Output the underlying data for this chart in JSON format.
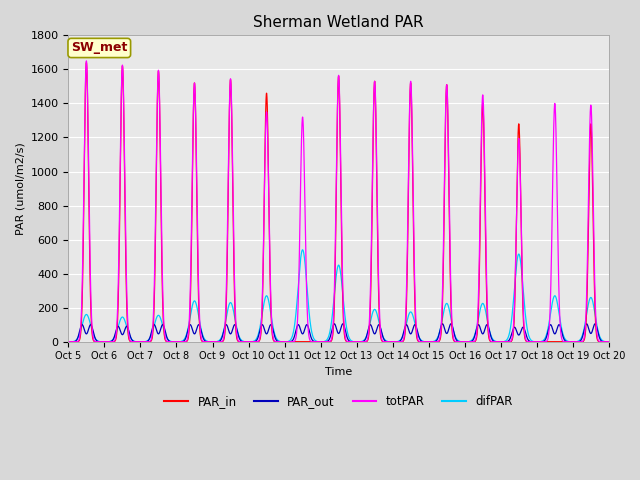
{
  "title": "Sherman Wetland PAR",
  "xlabel": "Time",
  "ylabel": "PAR (umol/m2/s)",
  "ylim": [
    0,
    1800
  ],
  "fig_bg_color": "#d8d8d8",
  "plot_bg": "#e8e8e8",
  "annotation_text": "SW_met",
  "annotation_bg": "#ffffcc",
  "annotation_border": "#999900",
  "annotation_text_color": "#8b0000",
  "n_days": 15,
  "points_per_day": 480,
  "colors": {
    "PAR_in": "#ff0000",
    "PAR_out": "#0000bb",
    "totPAR": "#ff00ff",
    "difPAR": "#00ccff"
  },
  "day_peaks": {
    "PAR_in": [
      1640,
      1620,
      1590,
      1520,
      1540,
      1460,
      0,
      1560,
      1530,
      1520,
      1510,
      1400,
      1280,
      0,
      1280
    ],
    "totPAR": [
      1650,
      1625,
      1595,
      1520,
      1545,
      1350,
      1320,
      1565,
      1530,
      1530,
      1510,
      1450,
      1195,
      1400,
      1390
    ],
    "difPAR": [
      160,
      145,
      155,
      240,
      230,
      270,
      540,
      450,
      190,
      175,
      225,
      225,
      515,
      270,
      260
    ],
    "PAR_out": [
      100,
      90,
      100,
      100,
      100,
      100,
      100,
      105,
      100,
      100,
      105,
      100,
      85,
      100,
      105
    ]
  },
  "tick_labels": [
    "Oct 5",
    "Oct 6",
    "Oct 7",
    "Oct 8",
    "Oct 9",
    "Oct 10",
    "Oct 11",
    "Oct 12",
    "Oct 13",
    "Oct 14",
    "Oct 15",
    "Oct 16",
    "Oct 17",
    "Oct 18",
    "Oct 19",
    "Oct 20"
  ],
  "tick_positions": [
    0,
    1,
    2,
    3,
    4,
    5,
    6,
    7,
    8,
    9,
    10,
    11,
    12,
    13,
    14,
    15
  ],
  "yticks": [
    0,
    200,
    400,
    600,
    800,
    1000,
    1200,
    1400,
    1600,
    1800
  ]
}
